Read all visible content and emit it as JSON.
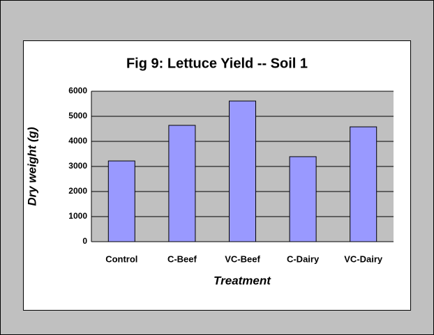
{
  "chart_data": {
    "type": "bar",
    "title": "Fig 9: Lettuce Yield -- Soil 1",
    "x_label": "Treatment",
    "y_label": "Dry weight (g)",
    "categories": [
      "Control",
      "C-Beef",
      "VC-Beef",
      "C-Dairy",
      "VC-Dairy"
    ],
    "values": [
      3220,
      4640,
      5610,
      3390,
      4580
    ],
    "color": "#9999ff",
    "ylim": [
      0,
      6000
    ],
    "yticks": [
      0,
      1000,
      2000,
      3000,
      4000,
      5000,
      6000
    ],
    "grid": true
  }
}
